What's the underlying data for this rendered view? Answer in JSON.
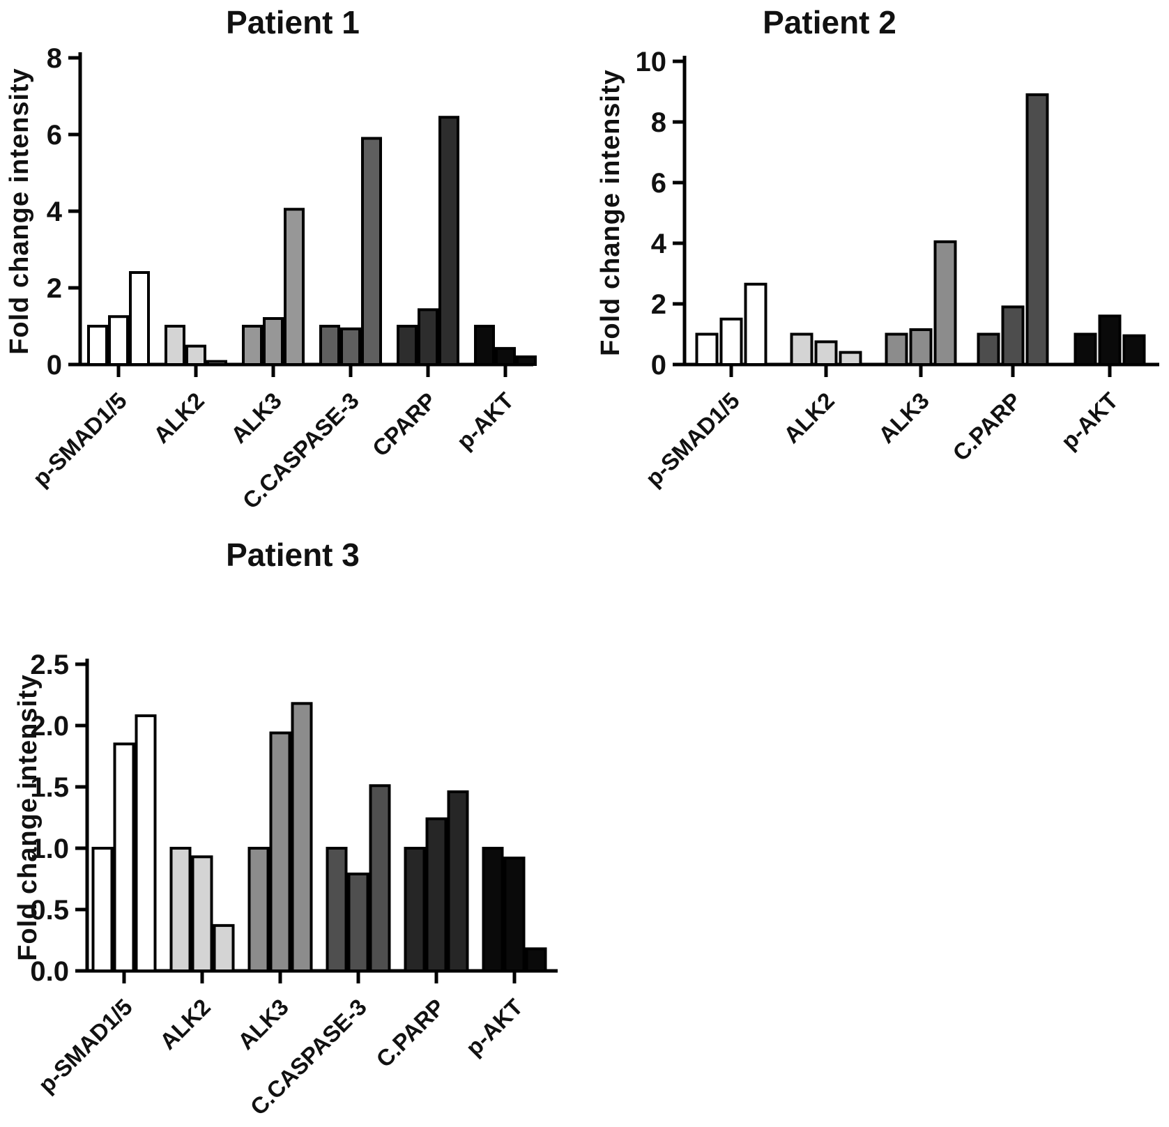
{
  "figure": {
    "background": "#ffffff",
    "text_color": "#111111",
    "axis_color": "#000000"
  },
  "chart_data": [
    {
      "type": "bar",
      "title": "Patient 1",
      "xlabel": "",
      "ylabel": "Fold change intensity",
      "ylim": [
        0,
        8
      ],
      "yticks": [
        0,
        2,
        4,
        6,
        8
      ],
      "ytick_labels": [
        "0",
        "2",
        "4",
        "6",
        "8"
      ],
      "grid": false,
      "legend": "none",
      "bars_per_group": 3,
      "bar_outline": "#000000",
      "categories": [
        "p-SMAD1/5",
        "ALK2",
        "ALK3",
        "C.CASPASE-3",
        "CPARP",
        "p-AKT"
      ],
      "bar_colors": [
        "#ffffff",
        "#d4d4d4",
        "#979797",
        "#5f5f5f",
        "#2d2d2d",
        "#0a0a0a"
      ],
      "values": [
        [
          1.0,
          1.25,
          2.4
        ],
        [
          1.0,
          0.48,
          0.08
        ],
        [
          1.0,
          1.2,
          4.05
        ],
        [
          1.0,
          0.93,
          5.9
        ],
        [
          1.0,
          1.43,
          6.45
        ],
        [
          1.0,
          0.42,
          0.2
        ]
      ]
    },
    {
      "type": "bar",
      "title": "Patient 2",
      "xlabel": "",
      "ylabel": "Fold change intensity",
      "ylim": [
        0,
        10
      ],
      "yticks": [
        0,
        2,
        4,
        6,
        8,
        10
      ],
      "ytick_labels": [
        "0",
        "2",
        "4",
        "6",
        "8",
        "10"
      ],
      "grid": false,
      "legend": "none",
      "bars_per_group": 3,
      "bar_outline": "#000000",
      "categories": [
        "p-SMAD1/5",
        "ALK2",
        "ALK3",
        "C.PARP",
        "p-AKT"
      ],
      "bar_colors": [
        "#ffffff",
        "#d4d4d4",
        "#8c8c8c",
        "#4d4d4d",
        "#0a0a0a"
      ],
      "values": [
        [
          1.0,
          1.5,
          2.65
        ],
        [
          1.0,
          0.75,
          0.4
        ],
        [
          1.0,
          1.15,
          4.05
        ],
        [
          1.0,
          1.9,
          8.9
        ],
        [
          1.0,
          1.6,
          0.95
        ]
      ]
    },
    {
      "type": "bar",
      "title": "Patient 3",
      "xlabel": "",
      "ylabel": "Fold change intensity",
      "ylim": [
        0,
        2.5
      ],
      "yticks": [
        0,
        0.5,
        1.0,
        1.5,
        2.0,
        2.5
      ],
      "ytick_labels": [
        "0.0",
        "0.5",
        "1.0",
        "1.5",
        "2.0",
        "2.5"
      ],
      "grid": false,
      "legend": "none",
      "bars_per_group": 3,
      "bar_outline": "#000000",
      "categories": [
        "p-SMAD1/5",
        "ALK2",
        "ALK3",
        "C.CASPASE-3",
        "C.PARP",
        "p-AKT"
      ],
      "bar_colors": [
        "#ffffff",
        "#d4d4d4",
        "#8c8c8c",
        "#4f4f4f",
        "#262626",
        "#0a0a0a"
      ],
      "values": [
        [
          1.0,
          1.85,
          2.08
        ],
        [
          1.0,
          0.93,
          0.37
        ],
        [
          1.0,
          1.94,
          2.18
        ],
        [
          1.0,
          0.79,
          1.51
        ],
        [
          1.0,
          1.24,
          1.46
        ],
        [
          1.0,
          0.92,
          0.18
        ]
      ]
    }
  ]
}
